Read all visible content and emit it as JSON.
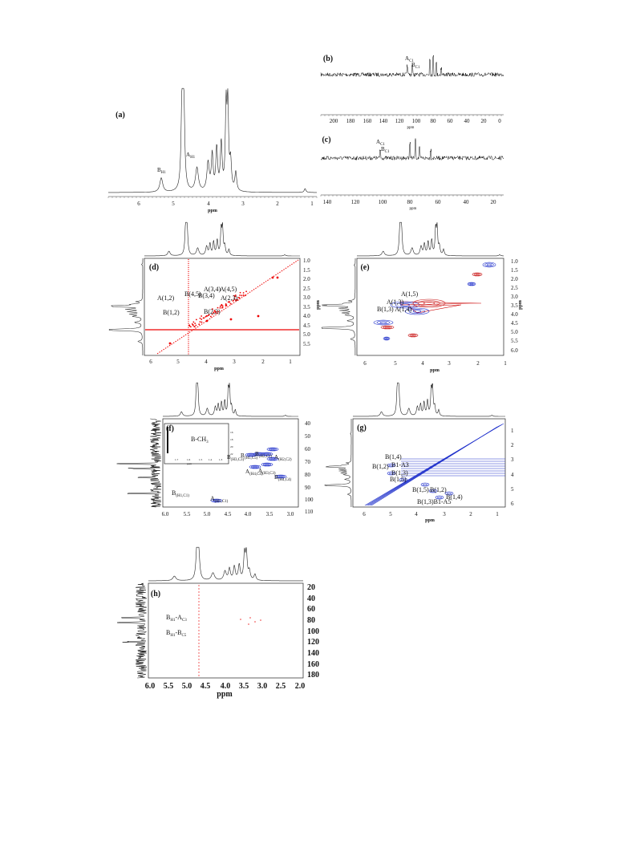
{
  "panels": [
    {
      "label": "(a)",
      "axis_title": "ppm",
      "x_ticks": [
        "6",
        "5",
        "4",
        "3",
        "2",
        "1"
      ],
      "annotations": [
        {
          "main": "B",
          "sub": "H1"
        },
        {
          "main": "A",
          "sub": "H1"
        }
      ]
    },
    {
      "label": "(b)",
      "axis_title": "ppm",
      "x_ticks": [
        "200",
        "180",
        "160",
        "140",
        "120",
        "100",
        "80",
        "60",
        "40",
        "20",
        "0"
      ],
      "annotations": [
        {
          "main": "A",
          "sub": "C1"
        },
        {
          "main": "B",
          "sub": "C1"
        }
      ]
    },
    {
      "label": "(c)",
      "axis_title": "ppm",
      "x_ticks": [
        "140",
        "120",
        "100",
        "80",
        "60",
        "40",
        "20"
      ],
      "annotations": [
        {
          "main": "A",
          "sub": "C1"
        },
        {
          "main": "B",
          "sub": "C1"
        }
      ]
    },
    {
      "label": "(d)",
      "axis_title": "ppm",
      "y_axis_title": "ppm",
      "x_ticks": [
        "6",
        "5",
        "4",
        "3",
        "2",
        "1"
      ],
      "y_ticks": [
        "1.0",
        "1.5",
        "2.0",
        "2.5",
        "3.0",
        "3.5",
        "4.0",
        "4.5",
        "5.0",
        "5.5"
      ],
      "annotations": [
        {
          "main": "A(1,2)"
        },
        {
          "main": "B(1,2)"
        },
        {
          "main": "B(4,5)"
        },
        {
          "main": "B(3,4)"
        },
        {
          "main": "A(3,4)"
        },
        {
          "main": "A(4,5)"
        },
        {
          "main": "B(2,3)"
        },
        {
          "main": "A(2,3)"
        }
      ]
    },
    {
      "label": "(e)",
      "axis_title": "ppm",
      "y_axis_title": "ppm",
      "x_ticks": [
        "6",
        "5",
        "4",
        "3",
        "2",
        "1"
      ],
      "y_ticks": [
        "1.0",
        "1.5",
        "2.0",
        "2.5",
        "3.0",
        "3.5",
        "4.0",
        "4.5",
        "5.0",
        "5.5",
        "6.0"
      ],
      "annotations": [
        {
          "main": "A(1,5)"
        },
        {
          "main": "A(1,3)"
        },
        {
          "main": "B(1,3) A(1,4)"
        }
      ]
    },
    {
      "label": "(f)",
      "x_ticks": [
        "6.0",
        "5.5",
        "5.0",
        "4.5",
        "4.0",
        "3.5",
        "3.0"
      ],
      "y_ticks": [
        "40",
        "50",
        "60",
        "70",
        "80",
        "90",
        "100",
        "110"
      ],
      "inset": {
        "label": {
          "main": "B-CH",
          "sub": "3"
        },
        "axis_title": "ppm",
        "x_ticks": [
          "1.7",
          "1.6",
          "1.5",
          "1.4",
          "1.3"
        ],
        "y_ticks": [
          "16",
          "18",
          "20",
          "22"
        ]
      },
      "annotations": [
        {
          "main": "B",
          "sub": "(H1,C1)"
        },
        {
          "main": "A",
          "sub": "(H1,C1)"
        },
        {
          "main": "B",
          "sub": "(H3,C3)"
        },
        {
          "main": "B",
          "sub": "(H5,C5)"
        },
        {
          "main": "B",
          "sub": "(H2,C2)"
        },
        {
          "main": "A",
          "sub": "(H2,C2)"
        },
        {
          "main": "A",
          "sub": "(H4,C4)"
        },
        {
          "main": "A",
          "sub": "(H3,C3)"
        },
        {
          "main": "B",
          "sub": "(H4,C4)"
        }
      ]
    },
    {
      "label": "(g)",
      "axis_title": "ppm",
      "x_ticks": [
        "6",
        "5",
        "4",
        "3",
        "2",
        "1"
      ],
      "y_ticks": [
        "1",
        "2",
        "3",
        "4",
        "5",
        "6"
      ],
      "annotations": [
        {
          "main": "B(1,4)"
        },
        {
          "main": "B(1,2)"
        },
        {
          "main": "B1-A3"
        },
        {
          "main": "B(1,3)"
        },
        {
          "main": "B(1,5)"
        },
        {
          "main": "B(1,5)"
        },
        {
          "main": "B(1,2)"
        },
        {
          "main": "B(1,4)"
        },
        {
          "main": "B(1,3)B1-A5"
        }
      ]
    },
    {
      "label": "(h)",
      "axis_title": "ppm",
      "x_ticks": [
        "6.0",
        "5.5",
        "5.0",
        "4.5",
        "4.0",
        "3.5",
        "3.0",
        "2.5",
        "2.0"
      ],
      "y_ticks": [
        "20",
        "40",
        "60",
        "80",
        "100",
        "120",
        "140",
        "160",
        "180"
      ],
      "annotations": [
        {
          "main": "B",
          "sub": "H1",
          "rest": "-A",
          "sub2": "C3"
        },
        {
          "main": "B",
          "sub": "H1",
          "rest": "-B",
          "sub2": "C5"
        }
      ]
    }
  ]
}
